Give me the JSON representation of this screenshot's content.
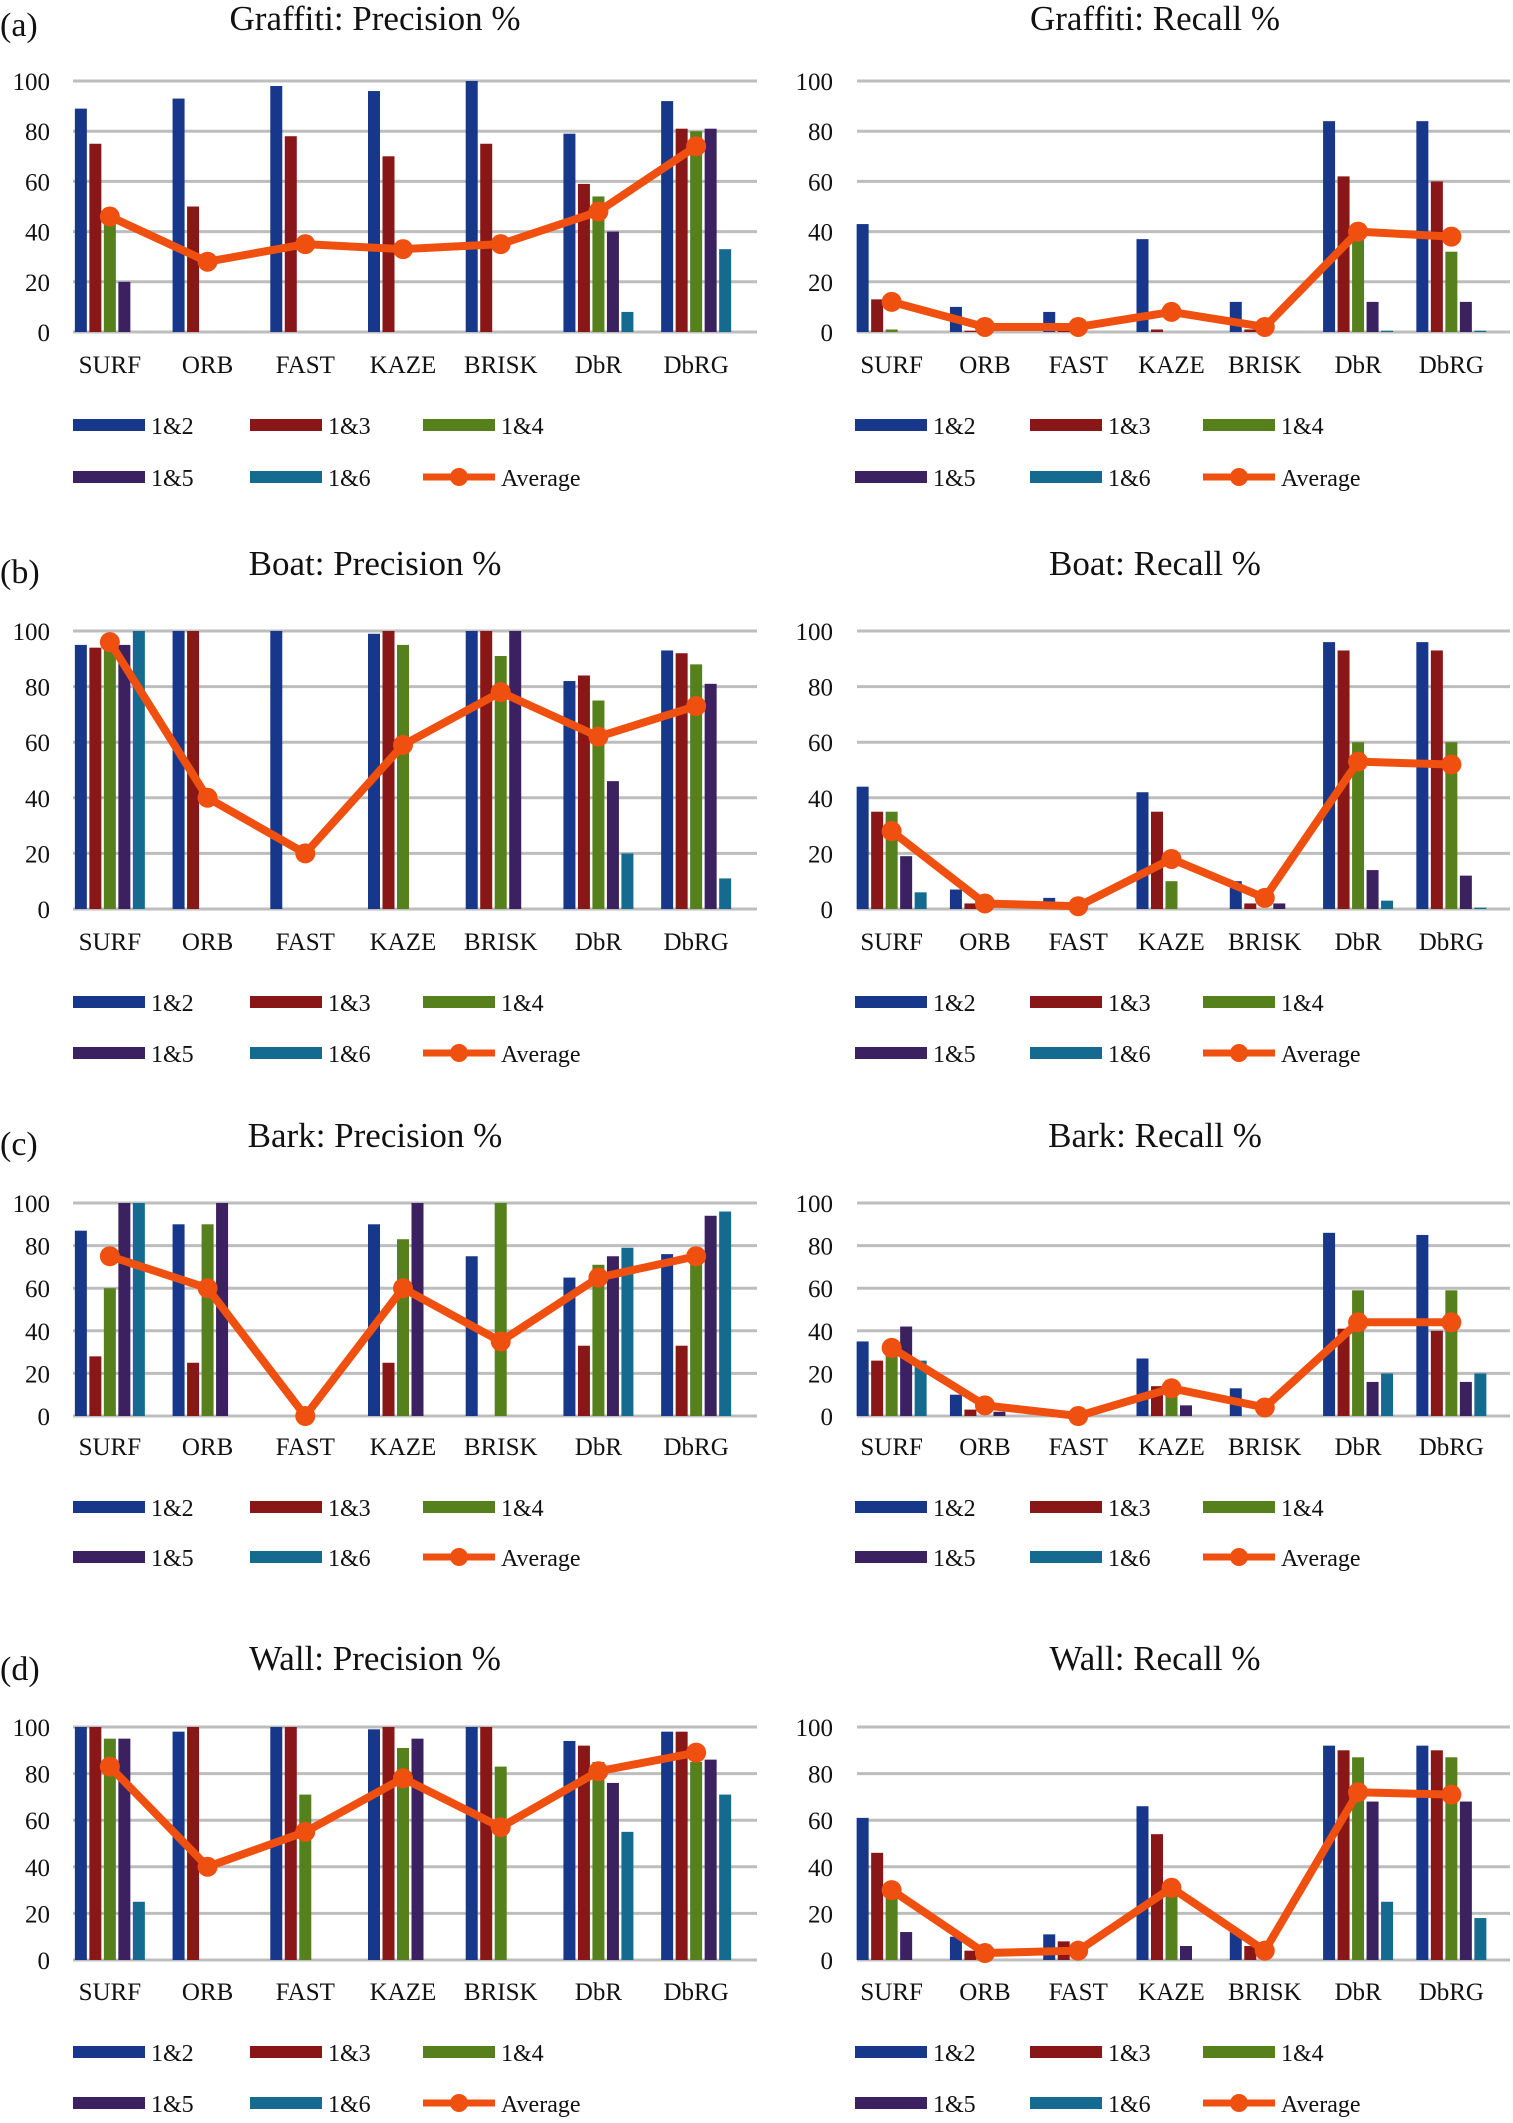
{
  "colors": {
    "1&2": "#17378a",
    "1&3": "#8a1717",
    "1&4": "#56801c",
    "1&5": "#3b2160",
    "1&6": "#146b8f",
    "Average": "#ef5010",
    "grid": "#bdbdbd"
  },
  "chart_data": [
    {
      "panel": "(a)",
      "type": "bar+line",
      "title": "Graffiti: Precision %",
      "ylim": [
        0,
        100
      ],
      "yticks": [
        0,
        20,
        40,
        60,
        80,
        100
      ],
      "grid": true,
      "legend": "bottom",
      "categories": [
        "SURF",
        "ORB",
        "FAST",
        "KAZE",
        "BRISK",
        "DbR",
        "DbRG"
      ],
      "series": [
        {
          "name": "1&2",
          "values": [
            89,
            93,
            98,
            96,
            100,
            79,
            92
          ]
        },
        {
          "name": "1&3",
          "values": [
            75,
            50,
            78,
            70,
            75,
            59,
            81
          ]
        },
        {
          "name": "1&4",
          "values": [
            45,
            0,
            0,
            0,
            0,
            54,
            80
          ]
        },
        {
          "name": "1&5",
          "values": [
            20,
            0,
            0,
            0,
            0,
            40,
            81
          ]
        },
        {
          "name": "1&6",
          "values": [
            0,
            0,
            0,
            0,
            0,
            8,
            33
          ]
        },
        {
          "name": "Average",
          "type": "line",
          "values": [
            46,
            28,
            35,
            33,
            35,
            48,
            74
          ]
        }
      ]
    },
    {
      "panel": "",
      "type": "bar+line",
      "title": "Graffiti: Recall %",
      "ylim": [
        0,
        100
      ],
      "yticks": [
        0,
        20,
        40,
        60,
        80,
        100
      ],
      "grid": true,
      "legend": "bottom",
      "categories": [
        "SURF",
        "ORB",
        "FAST",
        "KAZE",
        "BRISK",
        "DbR",
        "DbRG"
      ],
      "series": [
        {
          "name": "1&2",
          "values": [
            43,
            10,
            8,
            37,
            12,
            84,
            84
          ]
        },
        {
          "name": "1&3",
          "values": [
            13,
            0.5,
            1,
            1,
            1,
            62,
            60
          ]
        },
        {
          "name": "1&4",
          "values": [
            1,
            0,
            0,
            0,
            0,
            38,
            32
          ]
        },
        {
          "name": "1&5",
          "values": [
            0,
            0,
            0,
            0,
            0,
            12,
            12
          ]
        },
        {
          "name": "1&6",
          "values": [
            0,
            0,
            0,
            0,
            0,
            0.5,
            0.5
          ]
        },
        {
          "name": "Average",
          "type": "line",
          "values": [
            12,
            2,
            2,
            8,
            2,
            40,
            38
          ]
        }
      ]
    },
    {
      "panel": "(b)",
      "type": "bar+line",
      "title": "Boat: Precision %",
      "ylim": [
        0,
        100
      ],
      "yticks": [
        0,
        20,
        40,
        60,
        80,
        100
      ],
      "grid": true,
      "legend": "bottom",
      "categories": [
        "SURF",
        "ORB",
        "FAST",
        "KAZE",
        "BRISK",
        "DbR",
        "DbRG"
      ],
      "series": [
        {
          "name": "1&2",
          "values": [
            95,
            100,
            100,
            99,
            100,
            82,
            93
          ]
        },
        {
          "name": "1&3",
          "values": [
            94,
            100,
            0,
            100,
            100,
            84,
            92
          ]
        },
        {
          "name": "1&4",
          "values": [
            95,
            0,
            0,
            95,
            91,
            75,
            88
          ]
        },
        {
          "name": "1&5",
          "values": [
            95,
            0,
            0,
            0,
            100,
            46,
            81
          ]
        },
        {
          "name": "1&6",
          "values": [
            100,
            0,
            0,
            0,
            0,
            20,
            11
          ]
        },
        {
          "name": "Average",
          "type": "line",
          "values": [
            96,
            40,
            20,
            59,
            78,
            62,
            73
          ]
        }
      ]
    },
    {
      "panel": "",
      "type": "bar+line",
      "title": "Boat: Recall %",
      "ylim": [
        0,
        100
      ],
      "yticks": [
        0,
        20,
        40,
        60,
        80,
        100
      ],
      "grid": true,
      "legend": "bottom",
      "categories": [
        "SURF",
        "ORB",
        "FAST",
        "KAZE",
        "BRISK",
        "DbR",
        "DbRG"
      ],
      "series": [
        {
          "name": "1&2",
          "values": [
            44,
            7,
            4,
            42,
            10,
            96,
            96
          ]
        },
        {
          "name": "1&3",
          "values": [
            35,
            2,
            0,
            35,
            2,
            93,
            93
          ]
        },
        {
          "name": "1&4",
          "values": [
            35,
            0,
            0,
            10,
            0,
            60,
            60
          ]
        },
        {
          "name": "1&5",
          "values": [
            19,
            0,
            0,
            0,
            2,
            14,
            12
          ]
        },
        {
          "name": "1&6",
          "values": [
            6,
            0,
            0,
            0,
            0,
            3,
            0.5
          ]
        },
        {
          "name": "Average",
          "type": "line",
          "values": [
            28,
            2,
            1,
            18,
            4,
            53,
            52
          ]
        }
      ]
    },
    {
      "panel": "(c)",
      "type": "bar+line",
      "title": "Bark: Precision %",
      "ylim": [
        0,
        100
      ],
      "yticks": [
        0,
        20,
        40,
        60,
        80,
        100
      ],
      "grid": true,
      "legend": "bottom",
      "categories": [
        "SURF",
        "ORB",
        "FAST",
        "KAZE",
        "BRISK",
        "DbR",
        "DbRG"
      ],
      "series": [
        {
          "name": "1&2",
          "values": [
            87,
            90,
            0,
            90,
            75,
            65,
            76
          ]
        },
        {
          "name": "1&3",
          "values": [
            28,
            25,
            0,
            25,
            0,
            33,
            33
          ]
        },
        {
          "name": "1&4",
          "values": [
            60,
            90,
            0,
            83,
            100,
            71,
            79
          ]
        },
        {
          "name": "1&5",
          "values": [
            100,
            100,
            0,
            100,
            0,
            75,
            94
          ]
        },
        {
          "name": "1&6",
          "values": [
            100,
            0,
            0,
            0,
            0,
            79,
            96
          ]
        },
        {
          "name": "Average",
          "type": "line",
          "values": [
            75,
            60,
            0,
            60,
            35,
            65,
            75
          ]
        }
      ]
    },
    {
      "panel": "",
      "type": "bar+line",
      "title": "Bark: Recall %",
      "ylim": [
        0,
        100
      ],
      "yticks": [
        0,
        20,
        40,
        60,
        80,
        100
      ],
      "grid": true,
      "legend": "bottom",
      "categories": [
        "SURF",
        "ORB",
        "FAST",
        "KAZE",
        "BRISK",
        "DbR",
        "DbRG"
      ],
      "series": [
        {
          "name": "1&2",
          "values": [
            35,
            10,
            0,
            27,
            13,
            86,
            85
          ]
        },
        {
          "name": "1&3",
          "values": [
            26,
            3,
            0,
            14,
            0,
            41,
            40
          ]
        },
        {
          "name": "1&4",
          "values": [
            30,
            0,
            0,
            17,
            0,
            59,
            59
          ]
        },
        {
          "name": "1&5",
          "values": [
            42,
            2,
            0,
            5,
            0,
            16,
            16
          ]
        },
        {
          "name": "1&6",
          "values": [
            26,
            0,
            0,
            0,
            0,
            20,
            20
          ]
        },
        {
          "name": "Average",
          "type": "line",
          "values": [
            32,
            5,
            0,
            13,
            4,
            44,
            44
          ]
        }
      ]
    },
    {
      "panel": "(d)",
      "type": "bar+line",
      "title": "Wall: Precision %",
      "ylim": [
        0,
        100
      ],
      "yticks": [
        0,
        20,
        40,
        60,
        80,
        100
      ],
      "grid": true,
      "legend": "bottom",
      "categories": [
        "SURF",
        "ORB",
        "FAST",
        "KAZE",
        "BRISK",
        "DbR",
        "DbRG"
      ],
      "series": [
        {
          "name": "1&2",
          "values": [
            100,
            98,
            100,
            99,
            100,
            94,
            98
          ]
        },
        {
          "name": "1&3",
          "values": [
            100,
            100,
            100,
            100,
            100,
            92,
            98
          ]
        },
        {
          "name": "1&4",
          "values": [
            95,
            0,
            71,
            91,
            83,
            85,
            85
          ]
        },
        {
          "name": "1&5",
          "values": [
            95,
            0,
            0,
            95,
            0,
            76,
            86
          ]
        },
        {
          "name": "1&6",
          "values": [
            25,
            0,
            0,
            0,
            0,
            55,
            71
          ]
        },
        {
          "name": "Average",
          "type": "line",
          "values": [
            83,
            40,
            55,
            78,
            57,
            81,
            89
          ]
        }
      ]
    },
    {
      "panel": "",
      "type": "bar+line",
      "title": "Wall: Recall %",
      "ylim": [
        0,
        100
      ],
      "yticks": [
        0,
        20,
        40,
        60,
        80,
        100
      ],
      "grid": true,
      "legend": "bottom",
      "categories": [
        "SURF",
        "ORB",
        "FAST",
        "KAZE",
        "BRISK",
        "DbR",
        "DbRG"
      ],
      "series": [
        {
          "name": "1&2",
          "values": [
            61,
            10,
            11,
            66,
            12,
            92,
            92
          ]
        },
        {
          "name": "1&3",
          "values": [
            46,
            4,
            8,
            54,
            6,
            90,
            90
          ]
        },
        {
          "name": "1&4",
          "values": [
            28,
            0,
            0,
            28,
            0,
            87,
            87
          ]
        },
        {
          "name": "1&5",
          "values": [
            12,
            0,
            0,
            6,
            0,
            68,
            68
          ]
        },
        {
          "name": "1&6",
          "values": [
            0,
            0,
            0,
            0,
            0,
            25,
            18
          ]
        },
        {
          "name": "Average",
          "type": "line",
          "values": [
            30,
            3,
            4,
            31,
            4,
            72,
            71
          ]
        }
      ]
    }
  ]
}
